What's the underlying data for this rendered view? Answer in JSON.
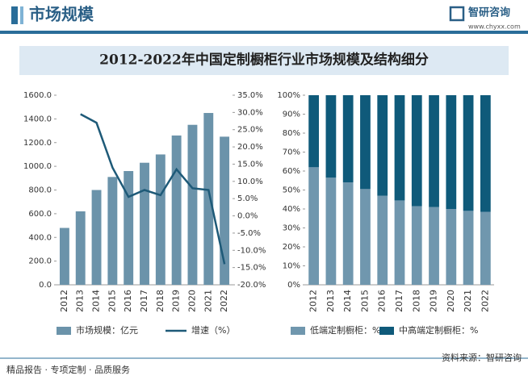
{
  "header": {
    "section": "市场规模",
    "brand": "智研咨询",
    "url": "www.chyxx.com"
  },
  "title": "2012-2022年中国定制橱柜行业市场规模及结构细分",
  "chart_data": [
    {
      "type": "bar_line",
      "categories": [
        "2012",
        "2013",
        "2014",
        "2015",
        "2016",
        "2017",
        "2018",
        "2019",
        "2020",
        "2021",
        "2022"
      ],
      "series": [
        {
          "name": "市场规模：亿元",
          "type": "bar",
          "color": "#6b93aa",
          "values": [
            480,
            620,
            800,
            910,
            960,
            1030,
            1100,
            1260,
            1350,
            1450,
            1250
          ]
        },
        {
          "name": "增速（%）",
          "type": "line",
          "axis": "y2",
          "color": "#1e5a78",
          "values": [
            null,
            29.5,
            27,
            14,
            5.5,
            7.5,
            6,
            13.5,
            8,
            7.5,
            -14
          ]
        }
      ],
      "ylim": [
        0,
        1600
      ],
      "yticks": [
        {
          "value": 0,
          "label": "0.0"
        },
        {
          "value": 200,
          "label": "200.0"
        },
        {
          "value": 400,
          "label": "400.0"
        },
        {
          "value": 600,
          "label": "600.0"
        },
        {
          "value": 800,
          "label": "800.0"
        },
        {
          "value": 1000,
          "label": "1000.0"
        },
        {
          "value": 1200,
          "label": "1200.0"
        },
        {
          "value": 1400,
          "label": "1400.0"
        },
        {
          "value": 1600,
          "label": "1600.0"
        }
      ],
      "y2lim": [
        -20,
        35
      ],
      "y2ticks": [
        {
          "value": -20,
          "label": "-20.0%"
        },
        {
          "value": -15,
          "label": "-15.0%"
        },
        {
          "value": -10,
          "label": "-10.0%"
        },
        {
          "value": -5,
          "label": "-5.0%"
        },
        {
          "value": 0,
          "label": "0.0%"
        },
        {
          "value": 5,
          "label": "5.0%"
        },
        {
          "value": 10,
          "label": "10.0%"
        },
        {
          "value": 15,
          "label": "15.0%"
        },
        {
          "value": 20,
          "label": "20.0%"
        },
        {
          "value": 25,
          "label": "25.0%"
        },
        {
          "value": 30,
          "label": "30.0%"
        },
        {
          "value": 35,
          "label": "35.0%"
        }
      ]
    },
    {
      "type": "stacked_bar",
      "categories": [
        "2012",
        "2013",
        "2014",
        "2015",
        "2016",
        "2017",
        "2018",
        "2019",
        "2020",
        "2021",
        "2022"
      ],
      "series": [
        {
          "name": "低端定制橱柜：%",
          "color": "#7097ae",
          "values": [
            62,
            56.5,
            54,
            50.5,
            47,
            44.5,
            41.5,
            41,
            40,
            39,
            38.5
          ]
        },
        {
          "name": "中高端定制橱柜：%",
          "color": "#0f5a7a",
          "values": [
            38,
            43.5,
            46,
            49.5,
            53,
            55.5,
            58.5,
            59,
            60,
            61,
            61.5
          ]
        }
      ],
      "ylim": [
        0,
        100
      ],
      "yticks": [
        {
          "value": 0,
          "label": "0%"
        },
        {
          "value": 10,
          "label": "10%"
        },
        {
          "value": 20,
          "label": "20%"
        },
        {
          "value": 30,
          "label": "30%"
        },
        {
          "value": 40,
          "label": "40%"
        },
        {
          "value": 50,
          "label": "50%"
        },
        {
          "value": 60,
          "label": "60%"
        },
        {
          "value": 70,
          "label": "70%"
        },
        {
          "value": 80,
          "label": "80%"
        },
        {
          "value": 90,
          "label": "90%"
        },
        {
          "value": 100,
          "label": "100%"
        }
      ]
    }
  ],
  "footer": {
    "tagline": "精品报告 · 专项定制 · 品质服务",
    "source": "资料来源：智研咨询"
  }
}
